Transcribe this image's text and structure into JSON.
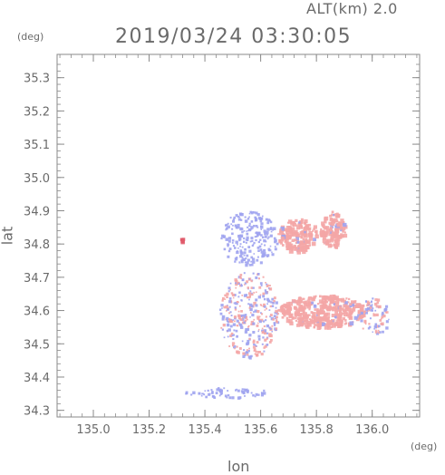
{
  "header": {
    "alt_label": "ALT(km) 2.0",
    "timestamp": "2019/03/24 03:30:05"
  },
  "colors": {
    "axis": "#8a8a8a",
    "text": "#6a6a6a",
    "positive": "#f4a6a6",
    "positive_strong": "#e05a6a",
    "negative": "#9ea3f0"
  },
  "chart_data": {
    "type": "heatmap",
    "xlabel": "lon",
    "ylabel": "lat",
    "x_unit": "(deg)",
    "y_unit": "(deg)",
    "xlim": [
      134.87,
      136.17
    ],
    "ylim": [
      34.28,
      35.37
    ],
    "xticks": [
      135.0,
      135.2,
      135.4,
      135.6,
      135.8,
      136.0
    ],
    "xtick_labels": [
      "135.0",
      "135.2",
      "135.4",
      "135.6",
      "135.8",
      "136.0"
    ],
    "yticks": [
      34.3,
      34.4,
      34.5,
      34.6,
      34.7,
      34.8,
      34.9,
      35.0,
      35.1,
      35.2,
      35.3
    ],
    "ytick_labels": [
      "34.3",
      "34.4",
      "34.5",
      "34.6",
      "34.7",
      "34.8",
      "34.9",
      "35.0",
      "35.1",
      "35.2",
      "35.3"
    ],
    "grid": false,
    "regions": [
      {
        "name": "north-east cluster",
        "sign": "positive",
        "lon": [
          135.66,
          135.8
        ],
        "lat": [
          34.78,
          34.88
        ]
      },
      {
        "name": "far north-east cluster",
        "sign": "positive",
        "lon": [
          135.81,
          135.9
        ],
        "lat": [
          34.79,
          34.9
        ]
      },
      {
        "name": "central-north scatter",
        "sign": "negative",
        "lon": [
          135.45,
          135.66
        ],
        "lat": [
          34.74,
          34.9
        ]
      },
      {
        "name": "central column",
        "sign": "mixed",
        "lon": [
          135.45,
          135.66
        ],
        "lat": [
          34.46,
          34.72
        ]
      },
      {
        "name": "east band",
        "sign": "positive",
        "lon": [
          135.66,
          135.97
        ],
        "lat": [
          34.55,
          34.65
        ]
      },
      {
        "name": "east band tail",
        "sign": "mixed",
        "lon": [
          135.95,
          136.06
        ],
        "lat": [
          34.53,
          34.64
        ]
      },
      {
        "name": "south strip",
        "sign": "negative",
        "lon": [
          135.31,
          135.63
        ],
        "lat": [
          34.34,
          34.37
        ]
      },
      {
        "name": "isolated cell",
        "sign": "positive_strong",
        "lon": [
          135.31,
          135.32
        ],
        "lat": [
          34.81,
          34.82
        ]
      }
    ]
  }
}
